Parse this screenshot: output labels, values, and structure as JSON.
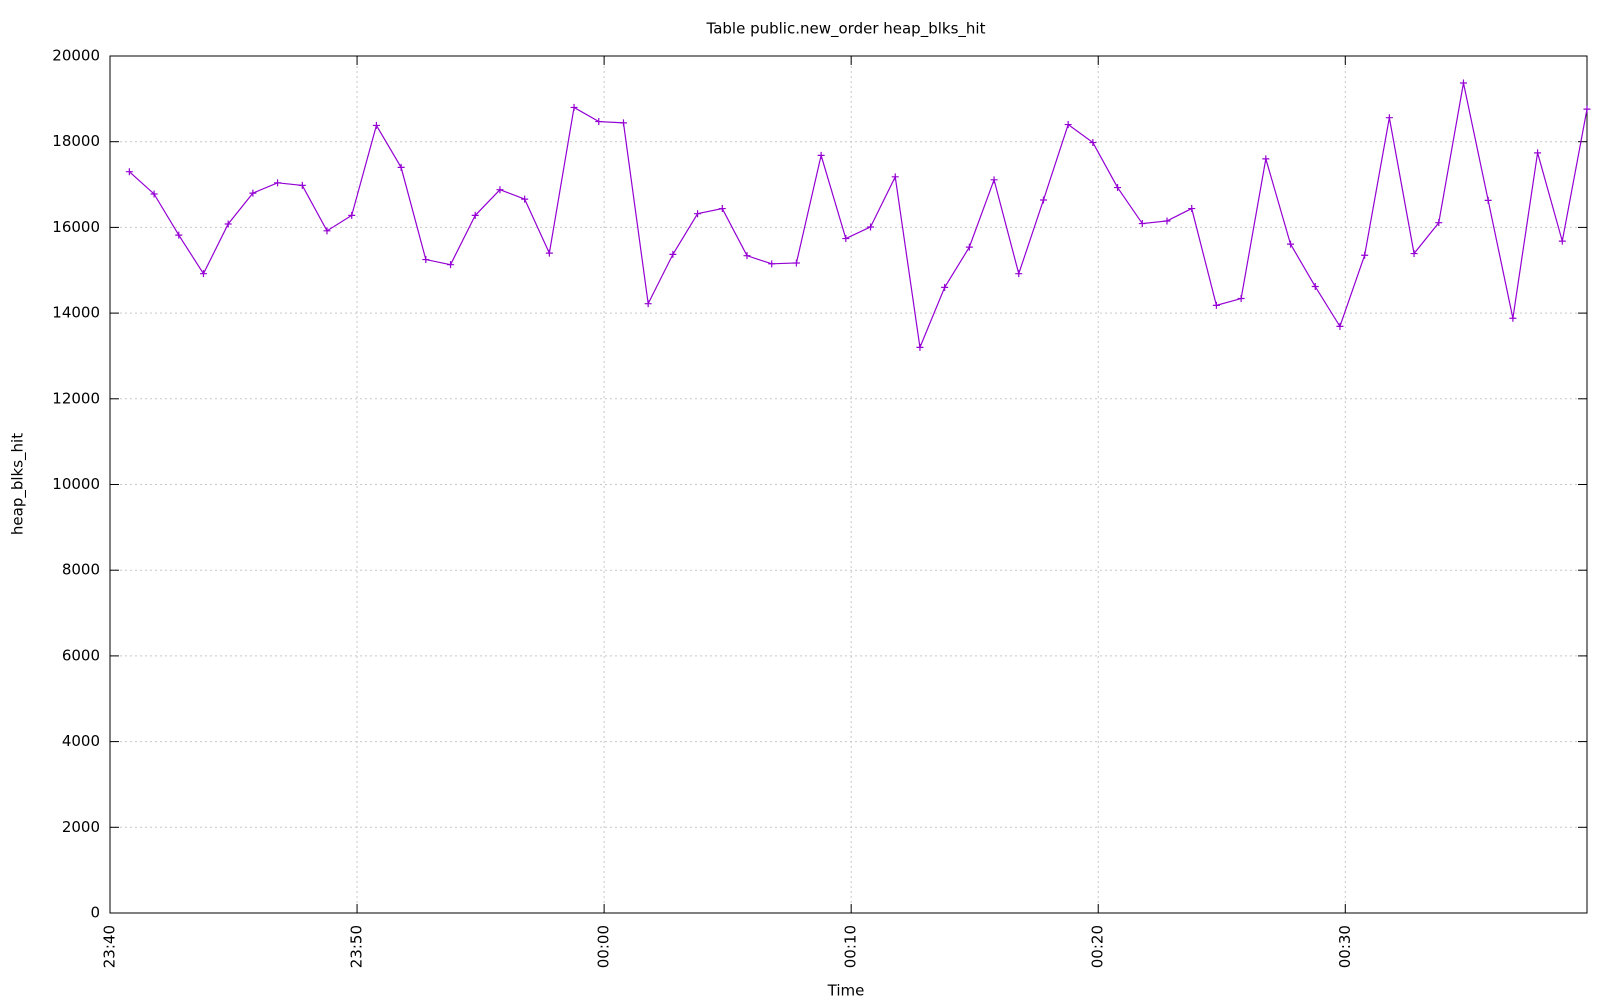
{
  "chart_data": {
    "type": "line",
    "title": "Table public.new_order heap_blks_hit",
    "xlabel": "Time",
    "ylabel": "heap_blks_hit",
    "x": [
      "23:40:47",
      "23:41:47",
      "23:42:47",
      "23:43:47",
      "23:44:47",
      "23:45:47",
      "23:46:47",
      "23:47:47",
      "23:48:47",
      "23:49:47",
      "23:50:47",
      "23:51:47",
      "23:52:47",
      "23:53:47",
      "23:54:47",
      "23:55:47",
      "23:56:47",
      "23:57:47",
      "23:58:47",
      "23:59:47",
      "00:00:47",
      "00:01:47",
      "00:02:47",
      "00:03:47",
      "00:04:47",
      "00:05:47",
      "00:06:47",
      "00:07:47",
      "00:08:47",
      "00:09:47",
      "00:10:47",
      "00:11:47",
      "00:12:47",
      "00:13:47",
      "00:14:47",
      "00:15:47",
      "00:16:47",
      "00:17:47",
      "00:18:47",
      "00:19:47",
      "00:20:47",
      "00:21:47",
      "00:22:47",
      "00:23:47",
      "00:24:47",
      "00:25:47",
      "00:26:47",
      "00:27:47",
      "00:28:47",
      "00:29:47",
      "00:30:47",
      "00:31:47",
      "00:32:47",
      "00:33:47",
      "00:34:47",
      "00:35:47",
      "00:36:47",
      "00:37:47",
      "00:38:47",
      "00:39:47"
    ],
    "series": [
      {
        "name": "heap_blks_hit",
        "color": "#9400d3",
        "values": [
          17300,
          16780,
          15820,
          14920,
          16080,
          16800,
          17040,
          16980,
          15920,
          16280,
          18380,
          17400,
          15250,
          15130,
          16280,
          16880,
          16660,
          15400,
          18800,
          18470,
          18440,
          14220,
          15370,
          16320,
          16440,
          15340,
          15150,
          15170,
          17680,
          15740,
          16010,
          17180,
          13200,
          14600,
          15540,
          17110,
          14920,
          16640,
          18400,
          17980,
          16930,
          16090,
          16150,
          16440,
          14180,
          14340,
          17600,
          15610,
          14620,
          13690,
          15350,
          18560,
          15390,
          16110,
          19370,
          16630,
          13880,
          17740,
          15680,
          18760
        ]
      }
    ],
    "xlim": [
      "23:40:00",
      "00:39:47"
    ],
    "xticks": [
      {
        "value": "23:40:00",
        "label": "23:40"
      },
      {
        "value": "23:50:00",
        "label": "23:50"
      },
      {
        "value": "00:00:00",
        "label": "00:00"
      },
      {
        "value": "00:10:00",
        "label": "00:10"
      },
      {
        "value": "00:20:00",
        "label": "00:20"
      },
      {
        "value": "00:30:00",
        "label": "00:30"
      }
    ],
    "ylim": [
      0,
      20000
    ],
    "yticks": [
      0,
      2000,
      4000,
      6000,
      8000,
      10000,
      12000,
      14000,
      16000,
      18000,
      20000
    ],
    "grid": true
  }
}
